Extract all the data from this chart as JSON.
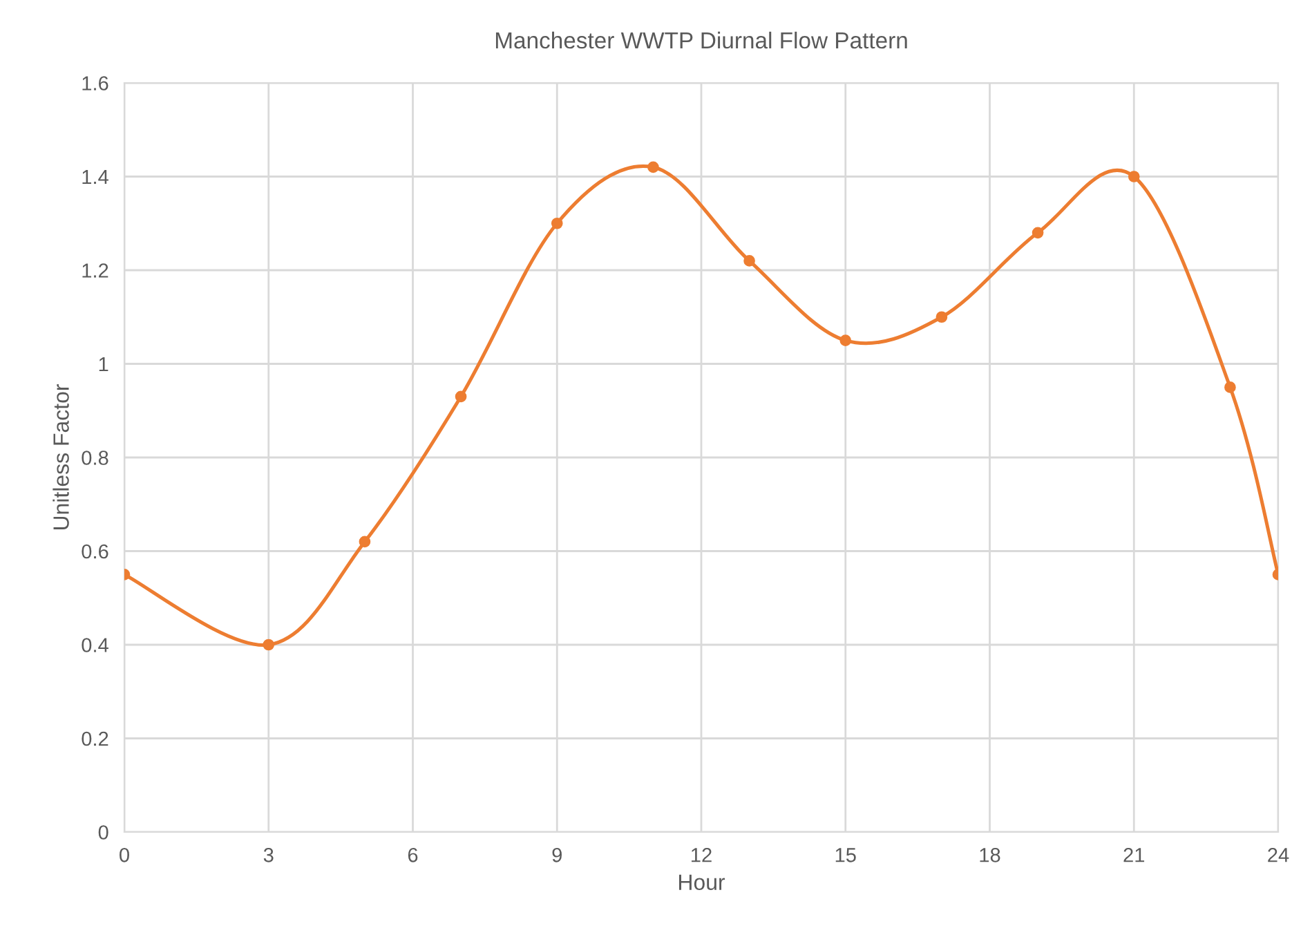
{
  "chart_data": {
    "type": "line",
    "title": "Manchester WWTP Diurnal Flow Pattern",
    "xlabel": "Hour",
    "ylabel": "Unitless Factor",
    "x": [
      0,
      3,
      5,
      7,
      9,
      11,
      13,
      15,
      17,
      19,
      21,
      23,
      24
    ],
    "series": [
      {
        "color": "#ed7d31",
        "values": [
          0.55,
          0.4,
          0.62,
          0.93,
          1.3,
          1.42,
          1.22,
          1.05,
          1.1,
          1.28,
          1.4,
          0.95,
          0.55
        ]
      }
    ],
    "xlim": [
      0,
      24
    ],
    "xticks": [
      0,
      3,
      6,
      9,
      12,
      15,
      18,
      21,
      24
    ],
    "ylim": [
      0,
      1.6
    ],
    "yticks": [
      0,
      {
        "value": 0.2,
        "label": "0.2"
      },
      {
        "value": 0.4,
        "label": "0.4"
      },
      {
        "value": 0.6,
        "label": "0.6"
      },
      {
        "value": 0.8,
        "label": "0.8"
      },
      1,
      {
        "value": 1.2,
        "label": "1.2"
      },
      {
        "value": 1.4,
        "label": "1.4"
      },
      {
        "value": 1.6,
        "label": "1.6"
      }
    ],
    "grid": true,
    "marker": "circle",
    "line_style": "solid"
  }
}
